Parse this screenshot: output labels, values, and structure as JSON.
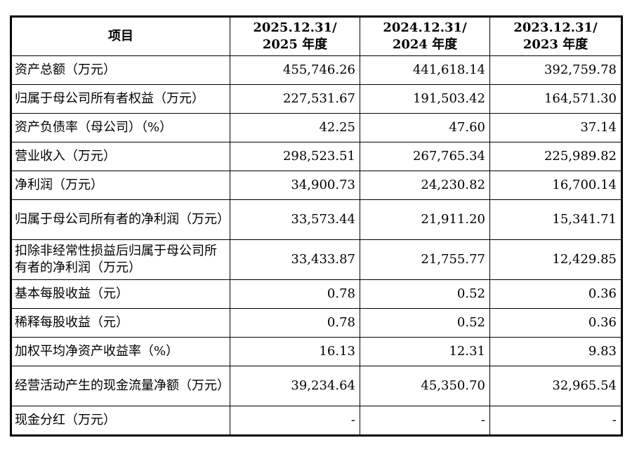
{
  "table": {
    "header": [
      [
        "项目"
      ],
      [
        "2025.12.31/",
        "2025 年度"
      ],
      [
        "2024.12.31/",
        "2024 年度"
      ],
      [
        "2023.12.31/",
        "2023 年度"
      ]
    ],
    "rows": [
      [
        "资产总额（万元）",
        "455,746.26",
        "441,618.14",
        "392,759.78"
      ],
      [
        "归属于母公司所有者权益（万元）",
        "227,531.67",
        "191,503.42",
        "164,571.30"
      ],
      [
        "资产负债率（母公司）（%）",
        "42.25",
        "47.60",
        "37.14"
      ],
      [
        "营业收入（万元）",
        "298,523.51",
        "267,765.34",
        "225,989.82"
      ],
      [
        "净利润（万元）",
        "34,900.73",
        "24,230.82",
        "16,700.14"
      ],
      [
        "归属于母公司所有者的净利润（万元）",
        "33,573.44",
        "21,911.20",
        "15,341.71"
      ],
      [
        "扣除非经常性损益后归属于母公司所有者的净利润（万元）",
        "33,433.87",
        "21,755.77",
        "12,429.85"
      ],
      [
        "基本每股收益（元）",
        "0.78",
        "0.52",
        "0.36"
      ],
      [
        "稀释每股收益（元）",
        "0.78",
        "0.52",
        "0.36"
      ],
      [
        "加权平均净资产收益率（%）",
        "16.13",
        "12.31",
        "9.83"
      ],
      [
        "经营活动产生的现金流量净额（万元）",
        "39,234.64",
        "45,350.70",
        "32,965.54"
      ],
      [
        "现金分红（万元）",
        "-",
        "-",
        "-"
      ]
    ]
  }
}
